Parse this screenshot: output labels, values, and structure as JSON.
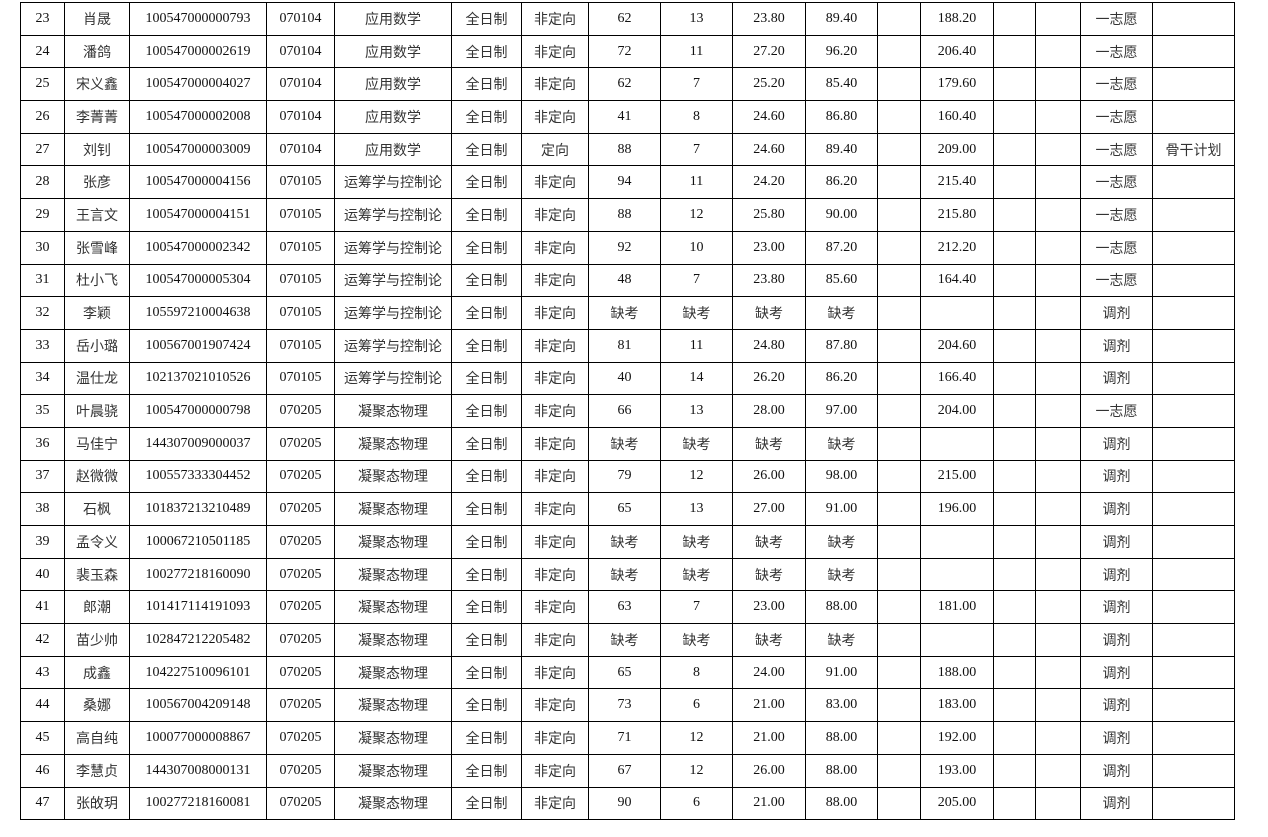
{
  "table": {
    "rows": [
      [
        "23",
        "肖晟",
        "100547000000793",
        "070104",
        "应用数学",
        "全日制",
        "非定向",
        "62",
        "13",
        "23.80",
        "89.40",
        "",
        "188.20",
        "",
        "",
        "一志愿",
        ""
      ],
      [
        "24",
        "潘鸽",
        "100547000002619",
        "070104",
        "应用数学",
        "全日制",
        "非定向",
        "72",
        "11",
        "27.20",
        "96.20",
        "",
        "206.40",
        "",
        "",
        "一志愿",
        ""
      ],
      [
        "25",
        "宋义鑫",
        "100547000004027",
        "070104",
        "应用数学",
        "全日制",
        "非定向",
        "62",
        "7",
        "25.20",
        "85.40",
        "",
        "179.60",
        "",
        "",
        "一志愿",
        ""
      ],
      [
        "26",
        "李菁菁",
        "100547000002008",
        "070104",
        "应用数学",
        "全日制",
        "非定向",
        "41",
        "8",
        "24.60",
        "86.80",
        "",
        "160.40",
        "",
        "",
        "一志愿",
        ""
      ],
      [
        "27",
        "刘钊",
        "100547000003009",
        "070104",
        "应用数学",
        "全日制",
        "定向",
        "88",
        "7",
        "24.60",
        "89.40",
        "",
        "209.00",
        "",
        "",
        "一志愿",
        "骨干计划"
      ],
      [
        "28",
        "张彦",
        "100547000004156",
        "070105",
        "运筹学与控制论",
        "全日制",
        "非定向",
        "94",
        "11",
        "24.20",
        "86.20",
        "",
        "215.40",
        "",
        "",
        "一志愿",
        ""
      ],
      [
        "29",
        "王言文",
        "100547000004151",
        "070105",
        "运筹学与控制论",
        "全日制",
        "非定向",
        "88",
        "12",
        "25.80",
        "90.00",
        "",
        "215.80",
        "",
        "",
        "一志愿",
        ""
      ],
      [
        "30",
        "张雪峰",
        "100547000002342",
        "070105",
        "运筹学与控制论",
        "全日制",
        "非定向",
        "92",
        "10",
        "23.00",
        "87.20",
        "",
        "212.20",
        "",
        "",
        "一志愿",
        ""
      ],
      [
        "31",
        "杜小飞",
        "100547000005304",
        "070105",
        "运筹学与控制论",
        "全日制",
        "非定向",
        "48",
        "7",
        "23.80",
        "85.60",
        "",
        "164.40",
        "",
        "",
        "一志愿",
        ""
      ],
      [
        "32",
        "李颖",
        "105597210004638",
        "070105",
        "运筹学与控制论",
        "全日制",
        "非定向",
        "缺考",
        "缺考",
        "缺考",
        "缺考",
        "",
        "",
        "",
        "",
        "调剂",
        ""
      ],
      [
        "33",
        "岳小璐",
        "100567001907424",
        "070105",
        "运筹学与控制论",
        "全日制",
        "非定向",
        "81",
        "11",
        "24.80",
        "87.80",
        "",
        "204.60",
        "",
        "",
        "调剂",
        ""
      ],
      [
        "34",
        "温仕龙",
        "102137021010526",
        "070105",
        "运筹学与控制论",
        "全日制",
        "非定向",
        "40",
        "14",
        "26.20",
        "86.20",
        "",
        "166.40",
        "",
        "",
        "调剂",
        ""
      ],
      [
        "35",
        "叶晨骁",
        "100547000000798",
        "070205",
        "凝聚态物理",
        "全日制",
        "非定向",
        "66",
        "13",
        "28.00",
        "97.00",
        "",
        "204.00",
        "",
        "",
        "一志愿",
        ""
      ],
      [
        "36",
        "马佳宁",
        "144307009000037",
        "070205",
        "凝聚态物理",
        "全日制",
        "非定向",
        "缺考",
        "缺考",
        "缺考",
        "缺考",
        "",
        "",
        "",
        "",
        "调剂",
        ""
      ],
      [
        "37",
        "赵微微",
        "100557333304452",
        "070205",
        "凝聚态物理",
        "全日制",
        "非定向",
        "79",
        "12",
        "26.00",
        "98.00",
        "",
        "215.00",
        "",
        "",
        "调剂",
        ""
      ],
      [
        "38",
        "石枫",
        "101837213210489",
        "070205",
        "凝聚态物理",
        "全日制",
        "非定向",
        "65",
        "13",
        "27.00",
        "91.00",
        "",
        "196.00",
        "",
        "",
        "调剂",
        ""
      ],
      [
        "39",
        "孟令义",
        "100067210501185",
        "070205",
        "凝聚态物理",
        "全日制",
        "非定向",
        "缺考",
        "缺考",
        "缺考",
        "缺考",
        "",
        "",
        "",
        "",
        "调剂",
        ""
      ],
      [
        "40",
        "裴玉森",
        "100277218160090",
        "070205",
        "凝聚态物理",
        "全日制",
        "非定向",
        "缺考",
        "缺考",
        "缺考",
        "缺考",
        "",
        "",
        "",
        "",
        "调剂",
        ""
      ],
      [
        "41",
        "郎潮",
        "101417114191093",
        "070205",
        "凝聚态物理",
        "全日制",
        "非定向",
        "63",
        "7",
        "23.00",
        "88.00",
        "",
        "181.00",
        "",
        "",
        "调剂",
        ""
      ],
      [
        "42",
        "苗少帅",
        "102847212205482",
        "070205",
        "凝聚态物理",
        "全日制",
        "非定向",
        "缺考",
        "缺考",
        "缺考",
        "缺考",
        "",
        "",
        "",
        "",
        "调剂",
        ""
      ],
      [
        "43",
        "成鑫",
        "104227510096101",
        "070205",
        "凝聚态物理",
        "全日制",
        "非定向",
        "65",
        "8",
        "24.00",
        "91.00",
        "",
        "188.00",
        "",
        "",
        "调剂",
        ""
      ],
      [
        "44",
        "桑娜",
        "100567004209148",
        "070205",
        "凝聚态物理",
        "全日制",
        "非定向",
        "73",
        "6",
        "21.00",
        "83.00",
        "",
        "183.00",
        "",
        "",
        "调剂",
        ""
      ],
      [
        "45",
        "高自纯",
        "100077000008867",
        "070205",
        "凝聚态物理",
        "全日制",
        "非定向",
        "71",
        "12",
        "21.00",
        "88.00",
        "",
        "192.00",
        "",
        "",
        "调剂",
        ""
      ],
      [
        "46",
        "李慧贞",
        "144307008000131",
        "070205",
        "凝聚态物理",
        "全日制",
        "非定向",
        "67",
        "12",
        "26.00",
        "88.00",
        "",
        "193.00",
        "",
        "",
        "调剂",
        ""
      ],
      [
        "47",
        "张敀玥",
        "100277218160081",
        "070205",
        "凝聚态物理",
        "全日制",
        "非定向",
        "90",
        "6",
        "21.00",
        "88.00",
        "",
        "205.00",
        "",
        "",
        "调剂",
        ""
      ]
    ]
  }
}
